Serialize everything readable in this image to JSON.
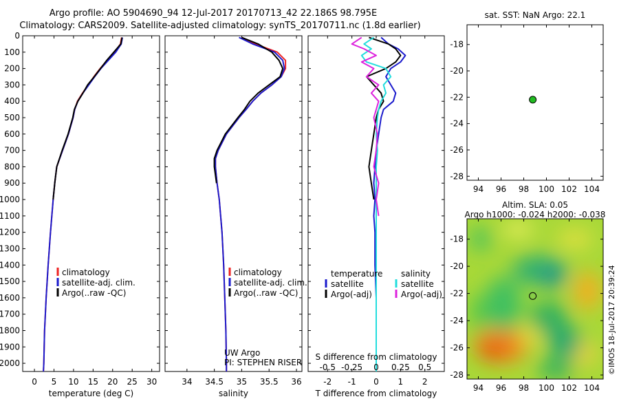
{
  "header": {
    "line1": "Argo profile: AO 5904690_94 12-Jul-2017 20170713_42 22.186S 98.795E",
    "line2": "Climatology: CARS2009. Satellite-adjusted climatology: synTS_20170711.nc (1.8d earlier)"
  },
  "colors": {
    "climatology": "#ee2222",
    "satellite": "#1a1acc",
    "argo": "#000000",
    "sal_sat": "#22dddd",
    "sal_argo": "#dd22dd"
  },
  "chart_data": [
    {
      "type": "line",
      "name": "temperature-profile",
      "xlabel": "temperature (deg C)",
      "xlim": [
        -3,
        32
      ],
      "ylim": [
        0,
        2050
      ],
      "y_inverted": true,
      "x_ticks": [
        0,
        5,
        10,
        15,
        20,
        25,
        30
      ],
      "y_ticks": [
        0,
        100,
        200,
        300,
        400,
        500,
        600,
        700,
        800,
        900,
        1000,
        1100,
        1200,
        1300,
        1400,
        1500,
        1600,
        1700,
        1800,
        1900,
        2000
      ],
      "legend": [
        "climatology",
        "satellite-adj. clim.",
        "Argo(..raw -QC)"
      ],
      "legend_position": "lower-center",
      "depth": [
        10,
        50,
        100,
        150,
        200,
        250,
        300,
        350,
        400,
        450,
        500,
        600,
        700,
        800,
        900,
        1000,
        1200,
        1400,
        1600,
        1800,
        2000,
        2050
      ],
      "series": [
        {
          "name": "climatology",
          "color": "#ee2222",
          "values": [
            22.3,
            22.0,
            20.5,
            18.6,
            16.8,
            15.2,
            13.8,
            12.3,
            11.0,
            10.3,
            9.9,
            8.7,
            7.2,
            5.7,
            5.2,
            4.8,
            4.1,
            3.5,
            3.0,
            2.6,
            2.4,
            2.3
          ]
        },
        {
          "name": "satellite-adj. clim.",
          "color": "#1a1acc",
          "values": [
            22.5,
            22.2,
            20.8,
            18.9,
            17.0,
            15.4,
            13.9,
            12.4,
            11.1,
            10.3,
            9.9,
            8.7,
            7.2,
            5.7,
            5.2,
            4.8,
            4.1,
            3.5,
            3.0,
            2.6,
            2.4,
            2.3
          ]
        },
        {
          "name": "Argo(..raw -QC)",
          "color": "#000000",
          "values": [
            22.4,
            22.1,
            20.3,
            18.5,
            16.9,
            15.3,
            13.6,
            12.4,
            11.1,
            10.2,
            9.8,
            8.6,
            7.1,
            5.7,
            5.2,
            4.8
          ]
        }
      ]
    },
    {
      "type": "line",
      "name": "salinity-profile",
      "xlabel": "salinity",
      "xlim": [
        33.6,
        36.1
      ],
      "ylim": [
        0,
        2050
      ],
      "y_inverted": true,
      "x_ticks": [
        34,
        34.5,
        35,
        35.5,
        36
      ],
      "legend": [
        "climatology",
        "satellite-adj. clim.",
        "Argo(..raw -QC)"
      ],
      "annotations": [
        "UW Argo",
        "PI: STEPHEN RISER"
      ],
      "depth": [
        10,
        50,
        100,
        150,
        200,
        250,
        300,
        350,
        400,
        450,
        500,
        600,
        700,
        750,
        800,
        900,
        1000,
        1200,
        1400,
        1600,
        1800,
        2000,
        2050
      ],
      "series": [
        {
          "name": "climatology",
          "color": "#ee2222",
          "values": [
            35.0,
            35.25,
            35.65,
            35.8,
            35.8,
            35.72,
            35.55,
            35.35,
            35.2,
            35.08,
            34.95,
            34.72,
            34.57,
            34.52,
            34.52,
            34.55,
            34.59,
            34.64,
            34.67,
            34.69,
            34.71,
            34.72,
            34.72
          ]
        },
        {
          "name": "satellite-adj. clim.",
          "color": "#1a1acc",
          "values": [
            34.95,
            35.2,
            35.6,
            35.75,
            35.78,
            35.72,
            35.55,
            35.35,
            35.2,
            35.08,
            34.95,
            34.72,
            34.57,
            34.52,
            34.52,
            34.55,
            34.59,
            34.64,
            34.67,
            34.69,
            34.71,
            34.72,
            34.72
          ]
        },
        {
          "name": "Argo(..raw -QC)",
          "color": "#000000",
          "values": [
            35.0,
            35.3,
            35.55,
            35.68,
            35.75,
            35.7,
            35.5,
            35.3,
            35.15,
            35.05,
            34.93,
            34.7,
            34.55,
            34.5,
            34.5,
            34.54
          ]
        }
      ]
    },
    {
      "type": "line",
      "name": "difference-profile",
      "xlabel": "T difference from climatology",
      "xlabel_top": "S difference from climatology",
      "xlim": [
        -2.8,
        2.8
      ],
      "ylim": [
        0,
        2050
      ],
      "y_inverted": true,
      "x_ticks": [
        -2,
        -1,
        0,
        1,
        2
      ],
      "x_ticks_top_labels": [
        "-0.5",
        "-0.25",
        "0",
        "0.25",
        "0.5"
      ],
      "legend_headers": [
        "temperature",
        "salinity"
      ],
      "legend": [
        "satellite",
        "Argo(-adj)",
        "satellite",
        "Argo(-adj)"
      ],
      "depth": [
        10,
        50,
        80,
        120,
        160,
        200,
        250,
        300,
        350,
        400,
        450,
        500,
        600,
        700,
        800,
        900,
        1000,
        1100,
        1200,
        1400,
        1600,
        1800,
        2000,
        2050
      ],
      "series": [
        {
          "name": "temperature satellite",
          "color": "#1a1acc",
          "values": [
            0.2,
            0.5,
            0.9,
            1.2,
            1.0,
            0.6,
            0.4,
            0.6,
            0.8,
            0.7,
            0.3,
            0.2,
            0.1,
            0.0,
            -0.05,
            -0.1,
            -0.05,
            -0.1,
            -0.05,
            -0.05,
            0.0,
            0.0,
            0.0,
            0.0
          ]
        },
        {
          "name": "temperature Argo(-adj)",
          "color": "#000000",
          "values": [
            -0.3,
            0.5,
            0.8,
            1.0,
            0.8,
            0.4,
            -0.4,
            -0.1,
            0.2,
            0.3,
            0.1,
            0.0,
            -0.1,
            -0.2,
            -0.3,
            -0.2,
            -0.1
          ]
        },
        {
          "name": "salinity satellite",
          "color": "#22dddd",
          "values": [
            -0.1,
            -0.5,
            -0.2,
            -0.6,
            -0.4,
            0.4,
            0.6,
            0.3,
            0.4,
            0.2,
            0.1,
            0.05,
            0.0,
            0.05,
            0.0,
            0.0,
            0.0,
            0.0,
            0.0,
            0.0,
            0.0,
            0.0,
            0.0,
            0.0
          ]
        },
        {
          "name": "salinity Argo(-adj)",
          "color": "#dd22dd",
          "values": [
            -0.6,
            -1.0,
            -0.5,
            0.0,
            -0.6,
            -0.1,
            -0.4,
            0.1,
            -0.2,
            0.1,
            0.0,
            -0.1,
            0.05,
            0.0,
            -0.1,
            0.1,
            0.0,
            0.1
          ]
        }
      ]
    },
    {
      "type": "scatter",
      "name": "location-map",
      "title": "sat. SST: NaN Argo: 22.1",
      "xlim": [
        93,
        105
      ],
      "ylim": [
        -28.3,
        -16.5
      ],
      "x_ticks": [
        94,
        96,
        98,
        100,
        102,
        104
      ],
      "y_ticks": [
        -18,
        -20,
        -22,
        -24,
        -26,
        -28
      ],
      "point": {
        "lon": 98.795,
        "lat": -22.186,
        "color": "#22bb22"
      }
    },
    {
      "type": "heatmap",
      "name": "sla-map",
      "title": "Altim. SLA: 0.05",
      "subtitle": "Argo h1000: -0.024 h2000: -0.038",
      "xlim": [
        93,
        105
      ],
      "ylim": [
        -28.3,
        -16.5
      ],
      "x_ticks": [
        94,
        96,
        98,
        100,
        102,
        104
      ],
      "y_ticks": [
        -18,
        -20,
        -22,
        -24,
        -26,
        -28
      ],
      "point": {
        "lon": 98.795,
        "lat": -22.186
      }
    }
  ],
  "watermark": "©IMOS 18-Jul-2017 20:39:24"
}
